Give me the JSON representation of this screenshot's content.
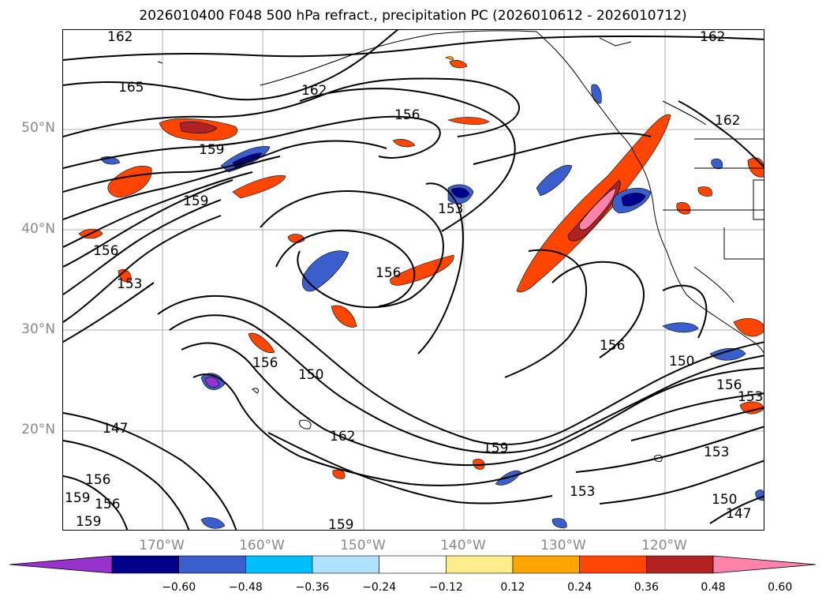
{
  "title": "2026010400 F048 500 hPa refract., precipitation PC (2026010612 - 2026010712)",
  "map": {
    "lat_labels": [
      "50°N",
      "40°N",
      "30°N",
      "20°N"
    ],
    "lon_labels": [
      "170°W",
      "160°W",
      "150°W",
      "140°W",
      "130°W",
      "120°W"
    ],
    "contour_labels": [
      "162",
      "162",
      "165",
      "162",
      "156",
      "162",
      "159",
      "159",
      "153",
      "156",
      "153",
      "156",
      "156",
      "150",
      "150",
      "156",
      "147",
      "162",
      "159",
      "153",
      "153",
      "150",
      "147",
      "159",
      "156",
      "156",
      "159",
      "159",
      "156",
      "153"
    ]
  },
  "colorbar": {
    "colors": [
      "#9932cc",
      "#00008b",
      "#3a5fcd",
      "#00bfff",
      "#b0e2ff",
      "#ffffff",
      "#ffec8b",
      "#ffa500",
      "#ff4500",
      "#b22222",
      "#ff82ab"
    ],
    "tick_labels": [
      "−0.60",
      "−0.48",
      "−0.36",
      "−0.24",
      "−0.12",
      "0.12",
      "0.24",
      "0.36",
      "0.48",
      "0.60"
    ]
  }
}
